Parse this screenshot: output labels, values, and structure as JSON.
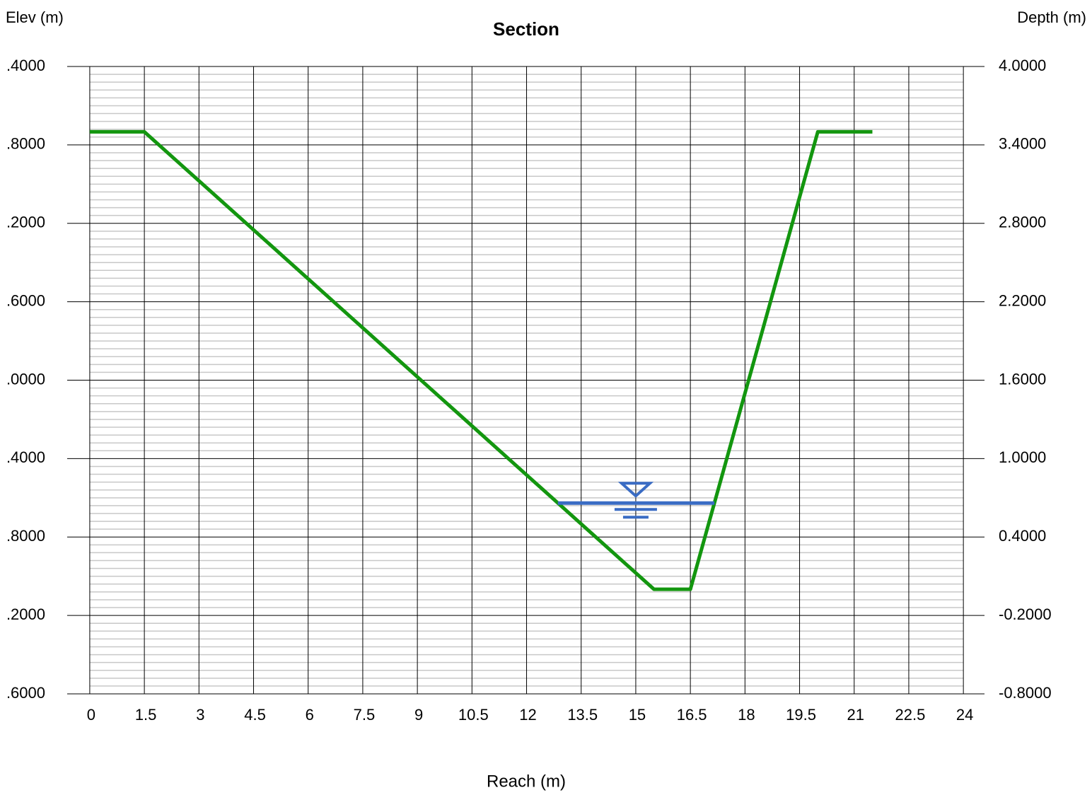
{
  "chart_data": {
    "type": "line",
    "title": "Section",
    "y_axis_label": "Elev (m)",
    "y2_axis_label": "Depth (m)",
    "x_axis_label": "Reach (m)",
    "xlim": [
      -0.62,
      24.58
    ],
    "xticks": [
      0,
      1.5,
      3,
      4.5,
      6,
      7.5,
      9,
      10.5,
      12,
      13.5,
      15,
      16.5,
      18,
      19.5,
      21,
      22.5,
      24
    ],
    "ylim": [
      -0.8,
      4.0
    ],
    "yticks": [
      {
        "value": 4.0,
        "label": "4.0000"
      },
      {
        "value": 3.4,
        "label": "3.4000"
      },
      {
        "value": 2.8,
        "label": "2.8000"
      },
      {
        "value": 2.2,
        "label": "2.2000"
      },
      {
        "value": 1.6,
        "label": "1.6000"
      },
      {
        "value": 1.0,
        "label": "1.0000"
      },
      {
        "value": 0.4,
        "label": "0.4000"
      },
      {
        "value": -0.2,
        "label": "-0.2000"
      },
      {
        "value": -0.8,
        "label": "-0.8000"
      }
    ],
    "left_tick_labels": [
      ".4000",
      ".8000",
      ".2000",
      ".6000",
      ".0000",
      ".4000",
      ".8000",
      ".2000",
      ".6000"
    ],
    "grid": true,
    "series": [
      {
        "name": "Ground",
        "color": "#13960f",
        "x": [
          0,
          1.5,
          15.5,
          16.5,
          20,
          21.5
        ],
        "values": [
          3.5,
          3.5,
          0,
          0,
          3.5,
          3.5
        ]
      },
      {
        "name": "Water surface",
        "color": "#3a6cc4",
        "x": [
          12.86,
          17.16
        ],
        "values": [
          0.66,
          0.66
        ]
      }
    ]
  }
}
